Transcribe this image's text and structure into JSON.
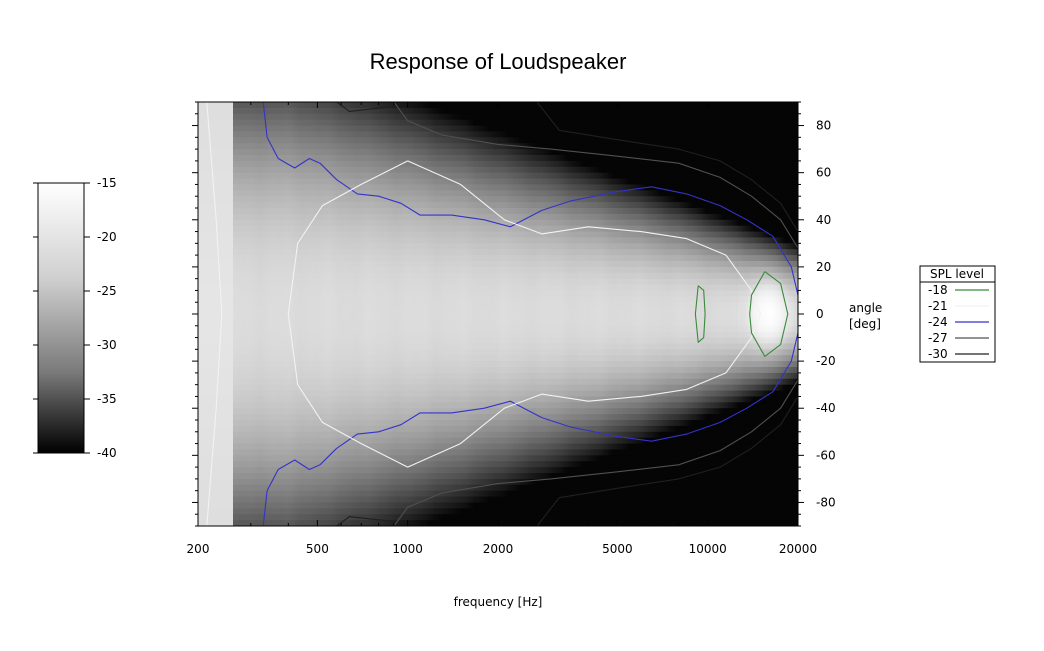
{
  "chart_data": {
    "type": "heatmap",
    "title": "Response of Loudspeaker",
    "xlabel": "frequency  [Hz]",
    "ylabel_line1": "angle",
    "ylabel_line2": "[deg]",
    "x_scale": "log",
    "xlim": [
      200,
      20000
    ],
    "ylim": [
      -90,
      90
    ],
    "x_ticks": [
      200,
      500,
      1000,
      2000,
      5000,
      10000,
      20000
    ],
    "x_tick_labels": [
      "200",
      "500",
      "1000",
      "2000",
      "5000",
      "10000",
      "20000"
    ],
    "y_ticks": [
      80,
      60,
      40,
      20,
      0,
      -20,
      -40,
      -60,
      -80
    ],
    "y_tick_labels": [
      "80",
      "60",
      "40",
      "20",
      "0",
      "-20",
      "-40",
      "-60",
      "-80"
    ],
    "colorbar": {
      "range": [
        -40,
        -15
      ],
      "ticks": [
        -15,
        -20,
        -25,
        -30,
        -35,
        -40
      ],
      "tick_labels": [
        "-15",
        "-20",
        "-25",
        "-30",
        "-35",
        "-40"
      ],
      "colormap": "grayscale",
      "low_color": "#000000",
      "high_color": "#ffffff"
    },
    "legend": {
      "title": "SPL level",
      "placement": "right",
      "entries": [
        {
          "label": "-18",
          "color": "#3a8a3a"
        },
        {
          "label": "-21",
          "color": "#f2f2f2"
        },
        {
          "label": "-24",
          "color": "#3333cc"
        },
        {
          "label": "-27",
          "color": "#505050"
        },
        {
          "label": "-30",
          "color": "#202020"
        }
      ]
    },
    "contours": [
      {
        "level": -21,
        "color": "#f2f2f2",
        "points": [
          [
            214,
            90
          ],
          [
            230,
            40
          ],
          [
            240,
            0
          ],
          [
            230,
            -40
          ],
          [
            214,
            -90
          ]
        ]
      },
      {
        "level": -24,
        "color": "#3333cc",
        "points": [
          [
            330,
            90
          ],
          [
            340,
            75
          ],
          [
            370,
            66
          ],
          [
            420,
            62
          ],
          [
            470,
            66
          ],
          [
            510,
            64
          ],
          [
            580,
            57
          ],
          [
            680,
            51
          ],
          [
            800,
            50
          ],
          [
            950,
            47
          ],
          [
            1100,
            42
          ],
          [
            1400,
            42
          ],
          [
            1800,
            40
          ],
          [
            2200,
            37
          ],
          [
            2800,
            44
          ],
          [
            3500,
            48
          ],
          [
            5000,
            52
          ],
          [
            6500,
            54
          ],
          [
            8500,
            51
          ],
          [
            11000,
            46
          ],
          [
            13500,
            40
          ],
          [
            16500,
            33
          ],
          [
            19000,
            20
          ],
          [
            20000,
            8
          ],
          [
            20000,
            -8
          ],
          [
            19000,
            -20
          ],
          [
            16500,
            -33
          ],
          [
            13500,
            -40
          ],
          [
            11000,
            -46
          ],
          [
            8500,
            -51
          ],
          [
            6500,
            -54
          ],
          [
            5000,
            -52
          ],
          [
            3500,
            -48
          ],
          [
            2800,
            -44
          ],
          [
            2200,
            -37
          ],
          [
            1800,
            -40
          ],
          [
            1400,
            -42
          ],
          [
            1100,
            -42
          ],
          [
            950,
            -47
          ],
          [
            800,
            -50
          ],
          [
            680,
            -51
          ],
          [
            580,
            -57
          ],
          [
            510,
            -64
          ],
          [
            470,
            -66
          ],
          [
            420,
            -62
          ],
          [
            370,
            -66
          ],
          [
            340,
            -75
          ],
          [
            330,
            -90
          ]
        ]
      },
      {
        "level": -27,
        "color": "#505050",
        "points": [
          [
            900,
            90
          ],
          [
            1000,
            82
          ],
          [
            1300,
            76
          ],
          [
            2000,
            72
          ],
          [
            3000,
            70
          ],
          [
            5000,
            67
          ],
          [
            8000,
            64
          ],
          [
            11000,
            58
          ],
          [
            14000,
            50
          ],
          [
            17500,
            40
          ],
          [
            20000,
            28
          ]
        ]
      },
      {
        "level": -27,
        "color": "#505050",
        "points": [
          [
            900,
            -90
          ],
          [
            1000,
            -82
          ],
          [
            1300,
            -76
          ],
          [
            2000,
            -72
          ],
          [
            3000,
            -70
          ],
          [
            5000,
            -67
          ],
          [
            8000,
            -64
          ],
          [
            11000,
            -58
          ],
          [
            14000,
            -50
          ],
          [
            17500,
            -40
          ],
          [
            20000,
            -28
          ]
        ]
      },
      {
        "level": -30,
        "color": "#202020",
        "points": [
          [
            580,
            90
          ],
          [
            640,
            86
          ],
          [
            750,
            87
          ],
          [
            900,
            88
          ]
        ]
      },
      {
        "level": -30,
        "color": "#202020",
        "points": [
          [
            2700,
            90
          ],
          [
            3200,
            78
          ],
          [
            5000,
            74
          ],
          [
            8000,
            70
          ],
          [
            11000,
            65
          ],
          [
            14000,
            57
          ],
          [
            17500,
            47
          ],
          [
            20000,
            35
          ]
        ]
      },
      {
        "level": -30,
        "color": "#202020",
        "points": [
          [
            580,
            -90
          ],
          [
            640,
            -86
          ],
          [
            750,
            -87
          ],
          [
            900,
            -88
          ]
        ]
      },
      {
        "level": -30,
        "color": "#202020",
        "points": [
          [
            2700,
            -90
          ],
          [
            3200,
            -78
          ],
          [
            5000,
            -74
          ],
          [
            8000,
            -70
          ],
          [
            11000,
            -65
          ],
          [
            14000,
            -57
          ],
          [
            17500,
            -47
          ],
          [
            20000,
            -35
          ]
        ]
      },
      {
        "level": -21,
        "color": "#f2f2f2",
        "points": [
          [
            1000,
            65
          ],
          [
            700,
            55
          ],
          [
            520,
            46
          ],
          [
            430,
            30
          ],
          [
            400,
            0
          ],
          [
            430,
            -30
          ],
          [
            520,
            -46
          ],
          [
            700,
            -55
          ],
          [
            1000,
            -65
          ],
          [
            1500,
            -55
          ],
          [
            2100,
            -40
          ],
          [
            2800,
            -34
          ],
          [
            4000,
            -37
          ],
          [
            6000,
            -35
          ],
          [
            8500,
            -32
          ],
          [
            11500,
            -25
          ],
          [
            14000,
            -10
          ],
          [
            15000,
            0
          ],
          [
            14000,
            10
          ],
          [
            11500,
            25
          ],
          [
            8500,
            32
          ],
          [
            6000,
            35
          ],
          [
            4000,
            37
          ],
          [
            2800,
            34
          ],
          [
            2100,
            40
          ],
          [
            1500,
            55
          ],
          [
            1000,
            65
          ]
        ]
      },
      {
        "level": -18,
        "color": "#3a8a3a",
        "points": [
          [
            9300,
            12
          ],
          [
            9700,
            10
          ],
          [
            9800,
            0
          ],
          [
            9700,
            -10
          ],
          [
            9300,
            -12
          ],
          [
            9100,
            0
          ],
          [
            9300,
            12
          ]
        ]
      },
      {
        "level": -18,
        "color": "#3a8a3a",
        "points": [
          [
            15500,
            18
          ],
          [
            17500,
            13
          ],
          [
            18500,
            0
          ],
          [
            17500,
            -13
          ],
          [
            15500,
            -18
          ],
          [
            14000,
            -8
          ],
          [
            13800,
            0
          ],
          [
            14000,
            8
          ],
          [
            15500,
            18
          ]
        ]
      }
    ]
  }
}
